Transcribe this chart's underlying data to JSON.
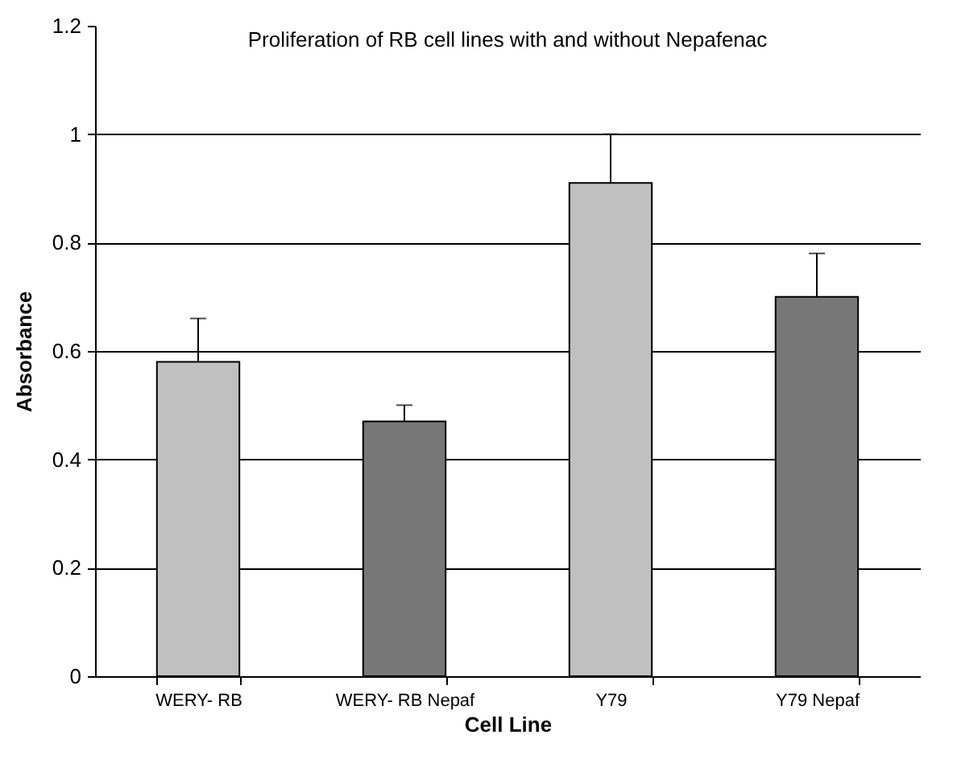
{
  "chart_data": {
    "type": "bar",
    "title": "Proliferation of RB cell lines with and without Nepafenac",
    "xlabel": "Cell Line",
    "ylabel": "Absorbance",
    "categories": [
      "WERY- RB",
      "WERY- RB Nepaf",
      "Y79",
      "Y79 Nepaf"
    ],
    "values": [
      0.58,
      0.47,
      0.91,
      0.7
    ],
    "errors": [
      0.08,
      0.03,
      0.09,
      0.08
    ],
    "colors": [
      "#c0c0c0",
      "#777777",
      "#c0c0c0",
      "#777777"
    ],
    "ylim": [
      0,
      1.2
    ],
    "yticks": [
      0,
      0.2,
      0.4,
      0.6,
      0.8,
      1,
      1.2
    ],
    "grid": "y"
  }
}
